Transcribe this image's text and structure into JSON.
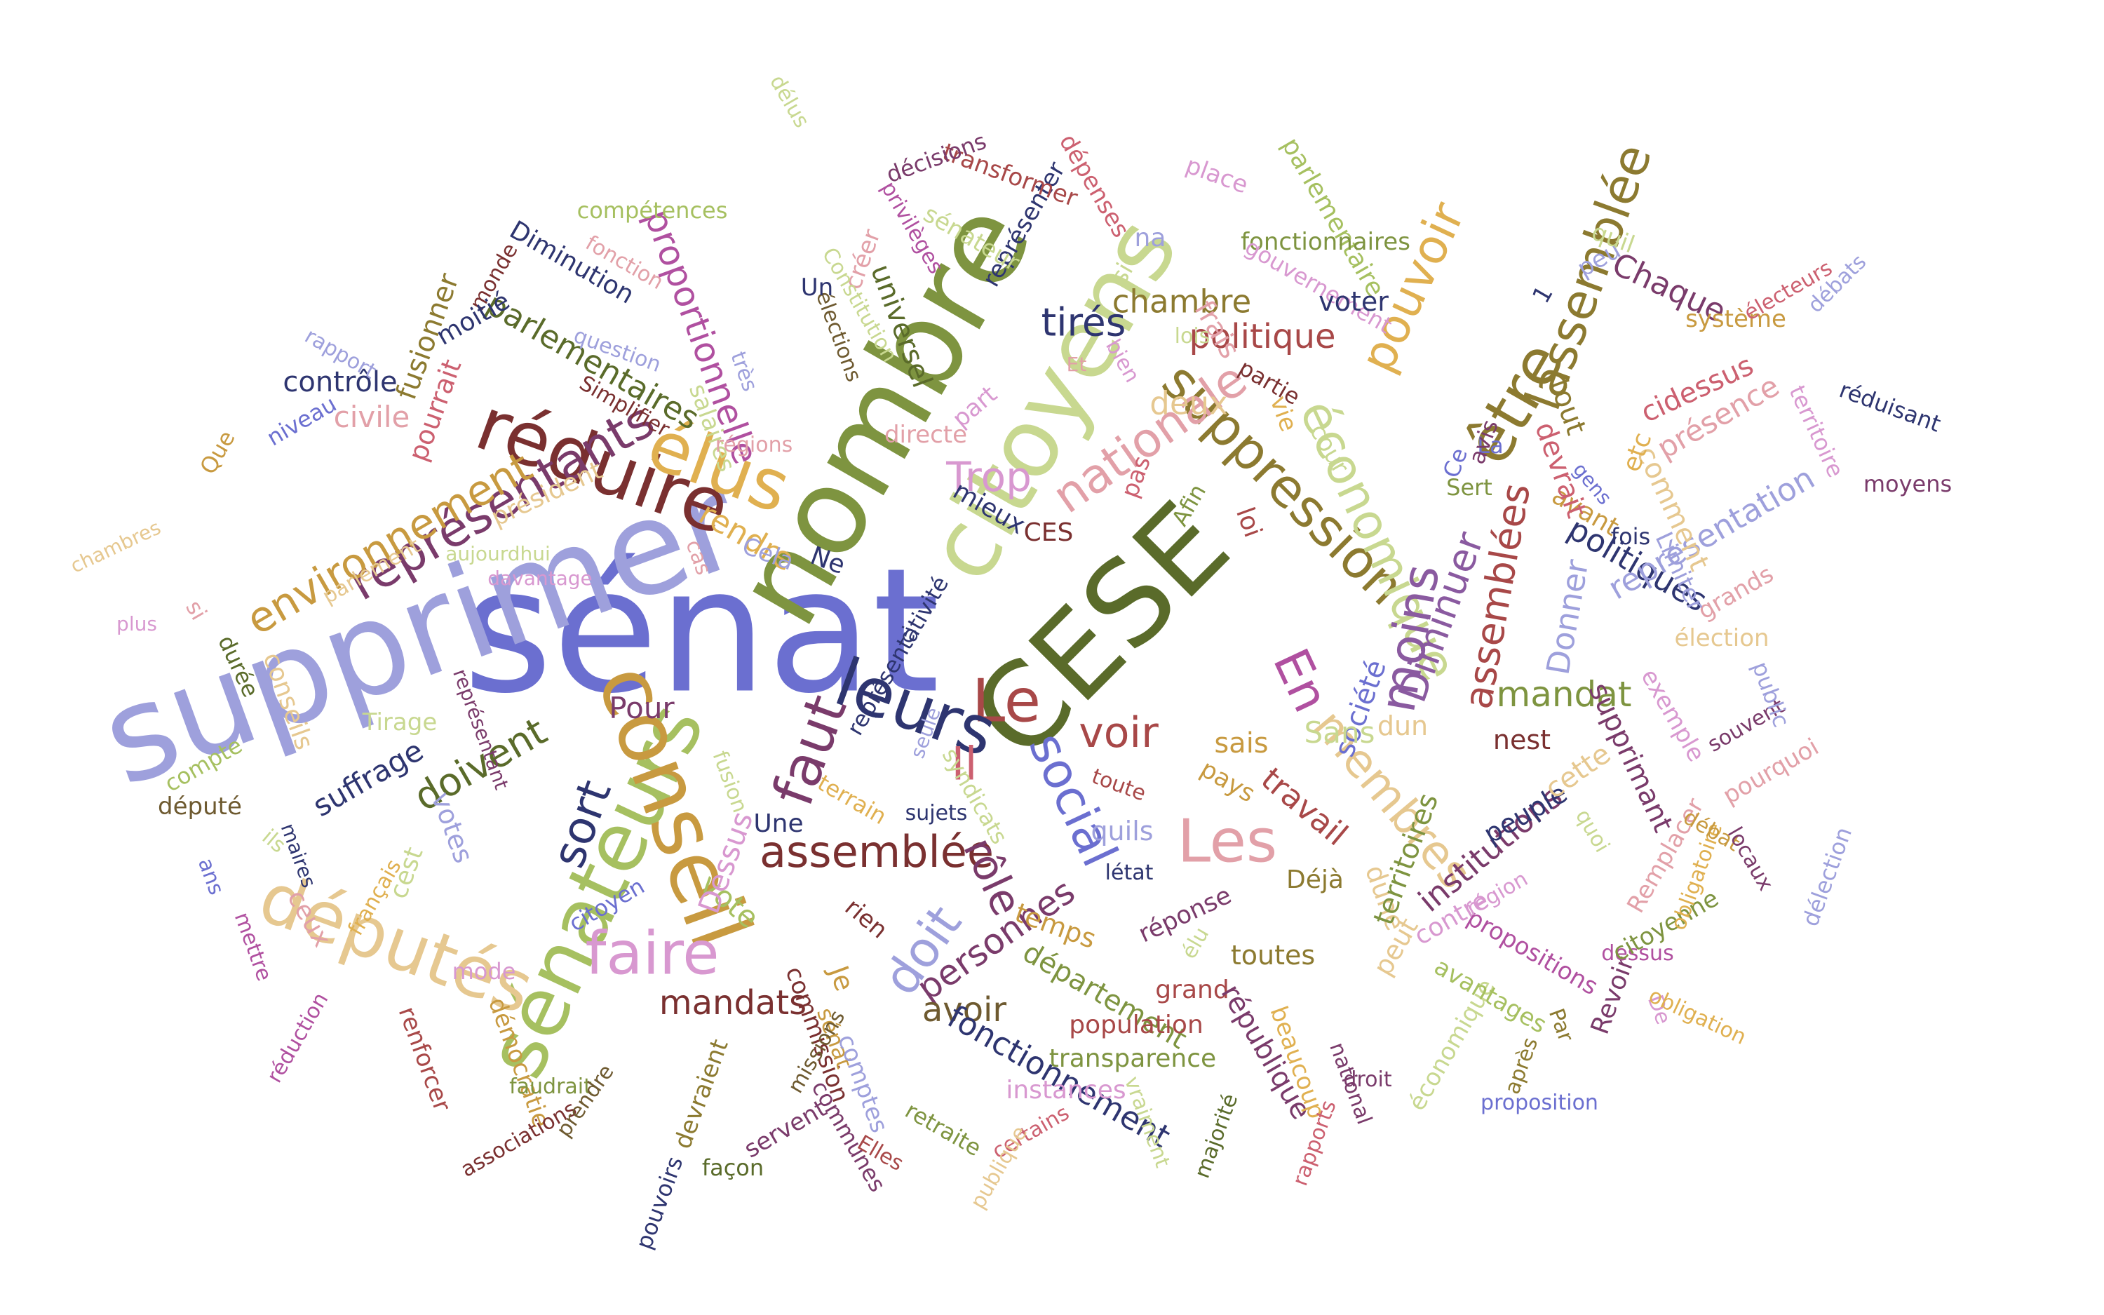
{
  "palette": {
    "periwinkle": "#6b6fd0",
    "lavender": "#9ea0dc",
    "navy": "#2e3570",
    "olive_dark": "#5a6b2a",
    "olive": "#7e9440",
    "sage": "#a6c060",
    "pale_sage": "#c8d890",
    "bronze": "#8c7a30",
    "gold": "#e0b050",
    "sand": "#e6c890",
    "maroon": "#7a3030",
    "brick": "#a84848",
    "rose": "#cc6070",
    "pink": "#e2a0a8",
    "plum": "#7a3b6b",
    "magenta": "#b050a0",
    "orchid": "#d898d0",
    "purple": "#8a5aa0",
    "brown": "#6e5a30"
  },
  "words": [
    {
      "text": "sénat",
      "color": "#6b6fd0"
    },
    {
      "text": "supprimer",
      "color": "#9ea0dc"
    },
    {
      "text": "nombre",
      "color": "#7e9440"
    },
    {
      "text": "CESE",
      "color": "#5a6b2a"
    },
    {
      "text": "citoyens",
      "color": "#c8d890"
    },
    {
      "text": "sénateurs",
      "color": "#a6c060"
    },
    {
      "text": "conseil",
      "color": "#c89a40"
    },
    {
      "text": "réduire",
      "color": "#7a3030"
    },
    {
      "text": "députés",
      "color": "#e6c890"
    },
    {
      "text": "faire",
      "color": "#d898d0"
    },
    {
      "text": "Les",
      "color": "#e2a0a8"
    },
    {
      "text": "Le",
      "color": "#a84848"
    },
    {
      "text": "leurs",
      "color": "#2e3570"
    },
    {
      "text": "élus",
      "color": "#e0b050"
    },
    {
      "text": "faut",
      "color": "#7a3b6b"
    },
    {
      "text": "suppression",
      "color": "#8c7a30"
    },
    {
      "text": "économique",
      "color": "#c8d890"
    },
    {
      "text": "être",
      "color": "#8c7a30"
    },
    {
      "text": "représentants",
      "color": "#7a3b6b"
    },
    {
      "text": "assemblée",
      "color": "#7a3030"
    },
    {
      "text": "social",
      "color": "#6b6fd0"
    },
    {
      "text": "nationale",
      "color": "#e2a0a8"
    },
    {
      "text": "pouvoir",
      "color": "#e0b050"
    },
    {
      "text": "lassemblée",
      "color": "#8c7a30"
    },
    {
      "text": "assemblées",
      "color": "#a84848"
    },
    {
      "text": "moins",
      "color": "#8a5aa0"
    },
    {
      "text": "membres",
      "color": "#e6c890"
    },
    {
      "text": "environnement",
      "color": "#c89a40"
    },
    {
      "text": "Diminuer",
      "color": "#8a5aa0"
    },
    {
      "text": "rôle",
      "color": "#7a3b6b"
    },
    {
      "text": "doit",
      "color": "#9ea0dc"
    },
    {
      "text": "sort",
      "color": "#2e3570"
    },
    {
      "text": "voir",
      "color": "#a84848"
    },
    {
      "text": "personnes",
      "color": "#7a3b6b"
    },
    {
      "text": "Il",
      "color": "#cc6070"
    },
    {
      "text": "En",
      "color": "#b050a0"
    },
    {
      "text": "mandat",
      "color": "#7e9440"
    },
    {
      "text": "proportionnelle",
      "color": "#b050a0"
    },
    {
      "text": "tirés",
      "color": "#2e3570"
    },
    {
      "text": "politique",
      "color": "#a84848"
    },
    {
      "text": "Trop",
      "color": "#d898d0"
    },
    {
      "text": "doivent",
      "color": "#5a6b2a"
    },
    {
      "text": "mandats",
      "color": "#7a3030"
    },
    {
      "text": "avoir",
      "color": "#6e5a30"
    },
    {
      "text": "institutions",
      "color": "#7a3b6b"
    },
    {
      "text": "travail",
      "color": "#a84848"
    },
    {
      "text": "chambre",
      "color": "#8c7a30"
    },
    {
      "text": "parlementaires",
      "color": "#5a6b2a"
    },
    {
      "text": "politiques",
      "color": "#2e3570"
    },
    {
      "text": "représentation",
      "color": "#9ea0dc"
    },
    {
      "text": "fonctionnement",
      "color": "#2e3570"
    },
    {
      "text": "département",
      "color": "#7e9440"
    },
    {
      "text": "Donner",
      "color": "#9ea0dc"
    },
    {
      "text": "société",
      "color": "#6b6fd0"
    },
    {
      "text": "deux",
      "color": "#e6c890"
    },
    {
      "text": "rendre",
      "color": "#e0b050"
    },
    {
      "text": "vote",
      "color": "#a6c060"
    },
    {
      "text": "temps",
      "color": "#c89a40"
    },
    {
      "text": "Pour",
      "color": "#7a3b6b"
    },
    {
      "text": "contrôle",
      "color": "#2e3570"
    },
    {
      "text": "suffrage",
      "color": "#2e3570"
    },
    {
      "text": "civile",
      "color": "#e2a0a8"
    },
    {
      "text": "universel",
      "color": "#5a6b2a"
    },
    {
      "text": "fusionner",
      "color": "#8c7a30"
    },
    {
      "text": "pourrait",
      "color": "#cc6070"
    },
    {
      "text": "présence",
      "color": "#e2a0a8"
    },
    {
      "text": "cidessus",
      "color": "#cc6070"
    },
    {
      "text": "Chaque",
      "color": "#7a3b6b"
    },
    {
      "text": "Sans",
      "color": "#c8d890"
    },
    {
      "text": "sais",
      "color": "#c89a40"
    },
    {
      "text": "pays",
      "color": "#c89a40"
    },
    {
      "text": "Déjà",
      "color": "#8c7a30"
    },
    {
      "text": "toutes",
      "color": "#8c7a30"
    },
    {
      "text": "grand",
      "color": "#a84848"
    },
    {
      "text": "population",
      "color": "#a84848"
    },
    {
      "text": "transparence",
      "color": "#7e9440"
    },
    {
      "text": "instances",
      "color": "#d898d0"
    },
    {
      "text": "réponse",
      "color": "#7a3b6b"
    },
    {
      "text": "létat",
      "color": "#2e3570"
    },
    {
      "text": "quils",
      "color": "#9ea0dc"
    },
    {
      "text": "toute",
      "color": "#a84848"
    },
    {
      "text": "sujets",
      "color": "#2e3570"
    },
    {
      "text": "terrain",
      "color": "#e0b050"
    },
    {
      "text": "Une",
      "color": "#2e3570"
    },
    {
      "text": "fusion",
      "color": "#c8d890"
    },
    {
      "text": "rien",
      "color": "#7a3030"
    },
    {
      "text": "Je",
      "color": "#c89a40"
    },
    {
      "text": "commission",
      "color": "#7a3030"
    },
    {
      "text": "devraient",
      "color": "#8c7a30"
    },
    {
      "text": "servent",
      "color": "#7a3b6b"
    },
    {
      "text": "façon",
      "color": "#5a6b2a"
    },
    {
      "text": "sénat",
      "color": "#c89a40"
    },
    {
      "text": "comptes",
      "color": "#9ea0dc"
    },
    {
      "text": "communes",
      "color": "#7a3b6b"
    },
    {
      "text": "Elles",
      "color": "#a84848"
    },
    {
      "text": "retraite",
      "color": "#7e9440"
    },
    {
      "text": "certains",
      "color": "#cc6070"
    },
    {
      "text": "publique",
      "color": "#e6c890"
    },
    {
      "text": "vraiment",
      "color": "#c8d890"
    },
    {
      "text": "majorité",
      "color": "#5a6b2a"
    },
    {
      "text": "république",
      "color": "#7a3b6b"
    },
    {
      "text": "élu",
      "color": "#c8d890"
    },
    {
      "text": "beaucoup",
      "color": "#e0b050"
    },
    {
      "text": "rapports",
      "color": "#cc6070"
    },
    {
      "text": "national",
      "color": "#7a3b6b"
    },
    {
      "text": "droit",
      "color": "#7a3b6b"
    },
    {
      "text": "économique",
      "color": "#c8d890"
    },
    {
      "text": "proposition",
      "color": "#6b6fd0"
    },
    {
      "text": "après",
      "color": "#8c7a30"
    },
    {
      "text": "Par",
      "color": "#8c7a30"
    },
    {
      "text": "avantages",
      "color": "#a6c060"
    },
    {
      "text": "propositions",
      "color": "#b050a0"
    },
    {
      "text": "Revoir",
      "color": "#7a3b6b"
    },
    {
      "text": "De",
      "color": "#d898d0"
    },
    {
      "text": "dessus",
      "color": "#b050a0"
    },
    {
      "text": "obligation",
      "color": "#e0b050"
    },
    {
      "text": "citoyenne",
      "color": "#7e9440"
    },
    {
      "text": "contre",
      "color": "#d898d0"
    },
    {
      "text": "peut",
      "color": "#e6c890"
    },
    {
      "text": "dune",
      "color": "#e6c890"
    },
    {
      "text": "région",
      "color": "#d898d0"
    },
    {
      "text": "territoires",
      "color": "#7e9440"
    },
    {
      "text": "peuple",
      "color": "#2e3570"
    },
    {
      "text": "cette",
      "color": "#e6c890"
    },
    {
      "text": "nest",
      "color": "#7a3030"
    },
    {
      "text": "dun",
      "color": "#e6c890"
    },
    {
      "text": "quoi",
      "color": "#c8d890"
    },
    {
      "text": "supprimant",
      "color": "#7a3b6b"
    },
    {
      "text": "Remplacer",
      "color": "#e2a0a8"
    },
    {
      "text": "obligatoire",
      "color": "#e0b050"
    },
    {
      "text": "débat",
      "color": "#c89a40"
    },
    {
      "text": "locaux",
      "color": "#7a3b6b"
    },
    {
      "text": "pourquoi",
      "color": "#e2a0a8"
    },
    {
      "text": "souvent",
      "color": "#7a3b6b"
    },
    {
      "text": "délection",
      "color": "#9ea0dc"
    },
    {
      "text": "public",
      "color": "#9ea0dc"
    },
    {
      "text": "exemple",
      "color": "#d898d0"
    },
    {
      "text": "élection",
      "color": "#e6c890"
    },
    {
      "text": "grands",
      "color": "#e2a0a8"
    },
    {
      "text": "Limiter",
      "color": "#9ea0dc"
    },
    {
      "text": "comment",
      "color": "#e6c890"
    },
    {
      "text": "fois",
      "color": "#2e3570"
    },
    {
      "text": "avant",
      "color": "#c89a40"
    },
    {
      "text": "gens",
      "color": "#6b6fd0"
    },
    {
      "text": "etc",
      "color": "#e0b050"
    },
    {
      "text": "devrait",
      "color": "#cc6070"
    },
    {
      "text": "tout",
      "color": "#8c7a30"
    },
    {
      "text": "Sert",
      "color": "#7e9440"
    },
    {
      "text": "La",
      "color": "#6b6fd0"
    },
    {
      "text": "Ce",
      "color": "#6b6fd0"
    },
    {
      "text": "avis",
      "color": "#7a3b6b"
    },
    {
      "text": "1",
      "color": "#2e3570"
    },
    {
      "text": "peu",
      "color": "#9ea0dc"
    },
    {
      "text": "quil",
      "color": "#c8d890"
    },
    {
      "text": "système",
      "color": "#c89a40"
    },
    {
      "text": "électeurs",
      "color": "#cc6070"
    },
    {
      "text": "débats",
      "color": "#9ea0dc"
    },
    {
      "text": "territoire",
      "color": "#d898d0"
    },
    {
      "text": "réduisant",
      "color": "#2e3570"
    },
    {
      "text": "moyens",
      "color": "#7a3b6b"
    },
    {
      "text": "parlementaire",
      "color": "#a6c060"
    },
    {
      "text": "fonctionnaires",
      "color": "#7e9440"
    },
    {
      "text": "gouvernement",
      "color": "#d898d0"
    },
    {
      "text": "voter",
      "color": "#2e3570"
    },
    {
      "text": "cour",
      "color": "#c8d890"
    },
    {
      "text": "vie",
      "color": "#e0b050"
    },
    {
      "text": "partie",
      "color": "#7a3030"
    },
    {
      "text": "loi",
      "color": "#a84848"
    },
    {
      "text": "frais",
      "color": "#e2a0a8"
    },
    {
      "text": "lois",
      "color": "#c8d890"
    },
    {
      "text": "bien",
      "color": "#d898d0"
    },
    {
      "text": "si",
      "color": "#c8d890"
    },
    {
      "text": "Et",
      "color": "#e2a0a8"
    },
    {
      "text": "place",
      "color": "#d898d0"
    },
    {
      "text": "na",
      "color": "#9ea0dc"
    },
    {
      "text": "dépenses",
      "color": "#cc6070"
    },
    {
      "text": "représenter",
      "color": "#2e3570"
    },
    {
      "text": "transformer",
      "color": "#a84848"
    },
    {
      "text": "sénateur",
      "color": "#c8d890"
    },
    {
      "text": "privilèges",
      "color": "#b050a0"
    },
    {
      "text": "décisions",
      "color": "#7a3b6b"
    },
    {
      "text": "créer",
      "color": "#e2a0a8"
    },
    {
      "text": "Constitution",
      "color": "#c8d890"
    },
    {
      "text": "élections",
      "color": "#6e5a30"
    },
    {
      "text": "part",
      "color": "#d898d0"
    },
    {
      "text": "directe",
      "color": "#e2a0a8"
    },
    {
      "text": "mieux",
      "color": "#2e3570"
    },
    {
      "text": "CES",
      "color": "#7a3030"
    },
    {
      "text": "pas",
      "color": "#cc6070"
    },
    {
      "text": "Afin",
      "color": "#7e9440"
    },
    {
      "text": "délus",
      "color": "#c8d890"
    },
    {
      "text": "Un",
      "color": "#2e3570"
    },
    {
      "text": "compétences",
      "color": "#a6c060"
    },
    {
      "text": "fonction",
      "color": "#e2a0a8"
    },
    {
      "text": "Diminution",
      "color": "#2e3570"
    },
    {
      "text": "monde",
      "color": "#7a3030"
    },
    {
      "text": "moitié",
      "color": "#2e3570"
    },
    {
      "text": "rapport",
      "color": "#9ea0dc"
    },
    {
      "text": "question",
      "color": "#9ea0dc"
    },
    {
      "text": "Simplifier",
      "color": "#7a3030"
    },
    {
      "text": "salaires",
      "color": "#c8d890"
    },
    {
      "text": "très",
      "color": "#9ea0dc"
    },
    {
      "text": "régions",
      "color": "#e2a0a8"
    },
    {
      "text": "niveau",
      "color": "#6b6fd0"
    },
    {
      "text": "Que",
      "color": "#c89a40"
    },
    {
      "text": "président",
      "color": "#e6c890"
    },
    {
      "text": "chambres",
      "color": "#e6c890"
    },
    {
      "text": "parlement",
      "color": "#e6c890"
    },
    {
      "text": "aujourdhui",
      "color": "#c8d890"
    },
    {
      "text": "davantage",
      "color": "#d898d0"
    },
    {
      "text": "Cela",
      "color": "#9ea0dc"
    },
    {
      "text": "Ne",
      "color": "#2e3570"
    },
    {
      "text": "cas",
      "color": "#e2a0a8"
    },
    {
      "text": "plus",
      "color": "#d898d0"
    },
    {
      "text": "si",
      "color": "#e2a0a8"
    },
    {
      "text": "durée",
      "color": "#5a6b2a"
    },
    {
      "text": "conseils",
      "color": "#e6c890"
    },
    {
      "text": "Tirage",
      "color": "#c8d890"
    },
    {
      "text": "compte",
      "color": "#a6c060"
    },
    {
      "text": "député",
      "color": "#6e5a30"
    },
    {
      "text": "représentant",
      "color": "#7a3b6b"
    },
    {
      "text": "représentativité",
      "color": "#2e3570"
    },
    {
      "text": "ci",
      "color": "#2e3570"
    },
    {
      "text": "Dessus",
      "color": "#d898d0"
    },
    {
      "text": "votes",
      "color": "#9ea0dc"
    },
    {
      "text": "ans",
      "color": "#6b6fd0"
    },
    {
      "text": "ils",
      "color": "#c8d890"
    },
    {
      "text": "maires",
      "color": "#2e3570"
    },
    {
      "text": "français",
      "color": "#e0b050"
    },
    {
      "text": "cest",
      "color": "#c8d890"
    },
    {
      "text": "citoyen",
      "color": "#6b6fd0"
    },
    {
      "text": "mode",
      "color": "#d898d0"
    },
    {
      "text": "ceux",
      "color": "#e2a0a8"
    },
    {
      "text": "mettre",
      "color": "#b050a0"
    },
    {
      "text": "réduction",
      "color": "#b050a0"
    },
    {
      "text": "renforcer",
      "color": "#a84848"
    },
    {
      "text": "démocratie",
      "color": "#c89a40"
    },
    {
      "text": "associations",
      "color": "#7a3030"
    },
    {
      "text": "faudrait",
      "color": "#7e9440"
    },
    {
      "text": "prendre",
      "color": "#6e5a30"
    },
    {
      "text": "pouvoirs",
      "color": "#2e3570"
    },
    {
      "text": "missions",
      "color": "#6e5a30"
    },
    {
      "text": "syndicats",
      "color": "#c8d890"
    },
    {
      "text": "seule",
      "color": "#9ea0dc"
    },
    {
      "text": "entre",
      "color": "#cc6070"
    },
    {
      "text": "haut",
      "color": "#cc6070"
    }
  ]
}
